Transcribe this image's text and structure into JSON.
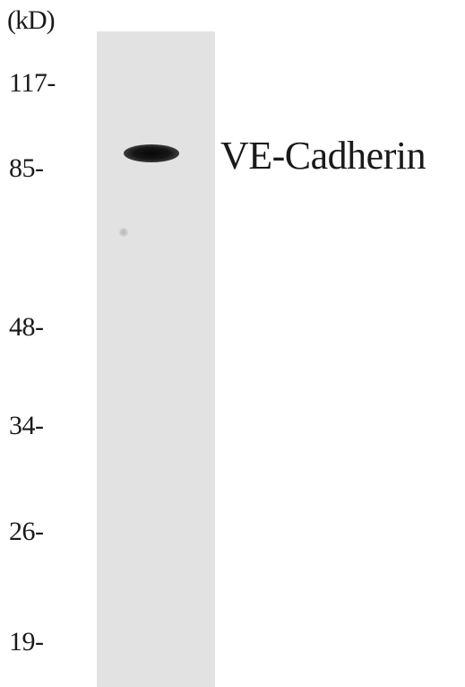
{
  "blot": {
    "unit_label": "(kD)",
    "markers": [
      "117-",
      "85-",
      "48-",
      "34-",
      "26-",
      "19-"
    ],
    "protein_label": "VE-Cadherin"
  }
}
